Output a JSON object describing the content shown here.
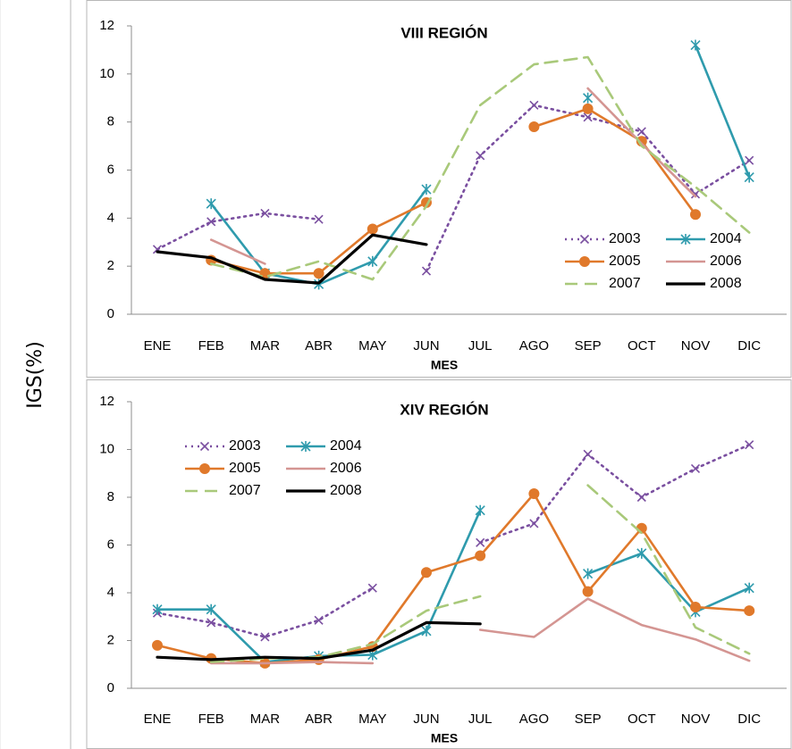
{
  "y_axis_label": "IGS(%)",
  "months": [
    "ENE",
    "FEB",
    "MAR",
    "ABR",
    "MAY",
    "JUN",
    "JUL",
    "AGO",
    "SEP",
    "OCT",
    "NOV",
    "DIC"
  ],
  "series_styles": {
    "2003": {
      "color": "#7a4fa0",
      "dash": "dotted",
      "marker": "x"
    },
    "2004": {
      "color": "#2f9bad",
      "dash": "solid",
      "marker": "asterisk"
    },
    "2005": {
      "color": "#e0792b",
      "dash": "solid",
      "marker": "circle"
    },
    "2006": {
      "color": "#d49592",
      "dash": "solid",
      "marker": "none"
    },
    "2007": {
      "color": "#a9c97a",
      "dash": "dashed",
      "marker": "none"
    },
    "2008": {
      "color": "#000000",
      "dash": "solid",
      "marker": "none"
    }
  },
  "chart_data": [
    {
      "type": "line",
      "title": "VIII REGIÓN",
      "xlabel": "MES",
      "ylabel": "IGS(%)",
      "categories": [
        "ENE",
        "FEB",
        "MAR",
        "ABR",
        "MAY",
        "JUN",
        "JUL",
        "AGO",
        "SEP",
        "OCT",
        "NOV",
        "DIC"
      ],
      "ylim": [
        0,
        12
      ],
      "yticks": [
        0,
        2,
        4,
        6,
        8,
        10,
        12
      ],
      "legend": "bottom-right",
      "grid": false,
      "series": [
        {
          "name": "2003",
          "values": [
            2.7,
            3.85,
            4.2,
            3.95,
            null,
            1.8,
            6.6,
            8.7,
            8.2,
            7.6,
            5.0,
            6.4
          ]
        },
        {
          "name": "2004",
          "values": [
            null,
            4.6,
            1.7,
            1.25,
            2.2,
            5.2,
            null,
            null,
            9.0,
            null,
            11.2,
            5.7
          ]
        },
        {
          "name": "2005",
          "values": [
            null,
            2.25,
            1.7,
            1.7,
            3.55,
            4.65,
            null,
            7.8,
            8.55,
            7.2,
            4.15,
            null
          ]
        },
        {
          "name": "2006",
          "values": [
            null,
            3.1,
            2.1,
            null,
            null,
            null,
            null,
            null,
            9.4,
            7.1,
            4.9,
            null
          ]
        },
        {
          "name": "2007",
          "values": [
            null,
            2.1,
            1.55,
            2.2,
            1.45,
            4.5,
            8.7,
            10.4,
            10.7,
            7.0,
            5.3,
            3.4
          ]
        },
        {
          "name": "2008",
          "values": [
            2.6,
            2.35,
            1.45,
            1.3,
            3.3,
            2.9,
            null,
            null,
            null,
            null,
            null,
            null
          ]
        }
      ]
    },
    {
      "type": "line",
      "title": "XIV REGIÓN",
      "xlabel": "MES",
      "ylabel": "IGS(%)",
      "categories": [
        "ENE",
        "FEB",
        "MAR",
        "ABR",
        "MAY",
        "JUN",
        "JUL",
        "AGO",
        "SEP",
        "OCT",
        "NOV",
        "DIC"
      ],
      "ylim": [
        0,
        12
      ],
      "yticks": [
        0,
        2,
        4,
        6,
        8,
        10,
        12
      ],
      "legend": "top-left",
      "grid": false,
      "series": [
        {
          "name": "2003",
          "values": [
            3.15,
            2.75,
            2.15,
            2.85,
            4.2,
            null,
            6.1,
            6.9,
            9.8,
            8.0,
            9.2,
            10.2
          ]
        },
        {
          "name": "2004",
          "values": [
            3.3,
            3.3,
            1.1,
            1.35,
            1.4,
            2.4,
            7.45,
            null,
            4.8,
            5.65,
            3.2,
            4.2
          ]
        },
        {
          "name": "2005",
          "values": [
            1.8,
            1.25,
            1.05,
            1.2,
            1.75,
            4.85,
            5.55,
            8.15,
            4.05,
            6.7,
            3.4,
            3.25
          ]
        },
        {
          "name": "2006",
          "values": [
            null,
            1.05,
            1.05,
            1.1,
            1.05,
            null,
            2.45,
            2.15,
            3.75,
            2.65,
            2.05,
            1.15
          ]
        },
        {
          "name": "2007",
          "values": [
            null,
            1.1,
            1.25,
            1.3,
            1.85,
            3.25,
            3.85,
            null,
            8.5,
            6.5,
            2.55,
            1.45
          ]
        },
        {
          "name": "2008",
          "values": [
            1.3,
            1.2,
            1.3,
            1.25,
            1.6,
            2.75,
            2.7,
            null,
            null,
            null,
            null,
            null
          ]
        }
      ]
    }
  ]
}
